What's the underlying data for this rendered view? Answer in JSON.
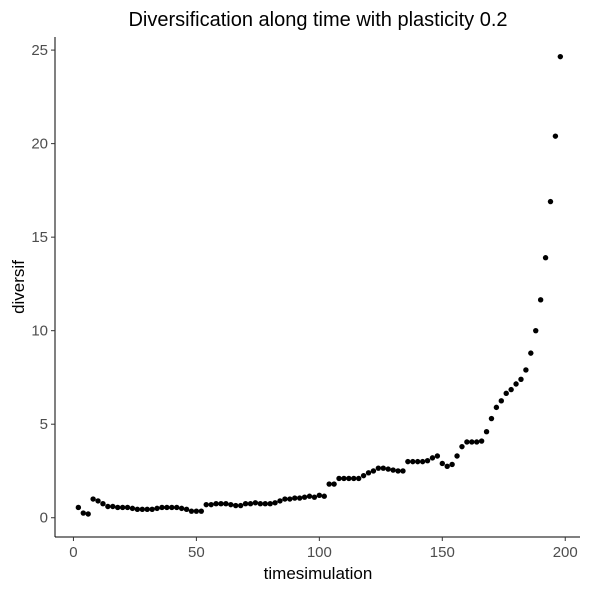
{
  "chart_data": {
    "type": "scatter",
    "title": "Diversification along time with plasticity 0.2",
    "xlabel": "timesimulation",
    "ylabel": "diversif",
    "xlim": [
      -7.5,
      206
    ],
    "ylim": [
      -1.03,
      25.7
    ],
    "xticks": [
      0,
      50,
      100,
      150,
      200
    ],
    "yticks": [
      0,
      5,
      10,
      15,
      20,
      25
    ],
    "xtick_labels": [
      "0",
      "50",
      "100",
      "150",
      "200"
    ],
    "ytick_labels": [
      "0",
      "5",
      "10",
      "15",
      "20",
      "25"
    ],
    "grid": false,
    "point_color": "#000000",
    "x": [
      2,
      4,
      6,
      8,
      10,
      12,
      14,
      16,
      18,
      20,
      22,
      24,
      26,
      28,
      30,
      32,
      34,
      36,
      38,
      40,
      42,
      44,
      46,
      48,
      50,
      52,
      54,
      56,
      58,
      60,
      62,
      64,
      66,
      68,
      70,
      72,
      74,
      76,
      78,
      80,
      82,
      84,
      86,
      88,
      90,
      92,
      94,
      96,
      98,
      100,
      102,
      104,
      106,
      108,
      110,
      112,
      114,
      116,
      118,
      120,
      122,
      124,
      126,
      128,
      130,
      132,
      134,
      136,
      138,
      140,
      142,
      144,
      146,
      148,
      150,
      152,
      154,
      156,
      158,
      160,
      162,
      164,
      166,
      168,
      170,
      172,
      174,
      176,
      178,
      180,
      182,
      184,
      186,
      188,
      190,
      192,
      194,
      196,
      198
    ],
    "y": [
      0.55,
      0.25,
      0.2,
      1.0,
      0.9,
      0.75,
      0.6,
      0.6,
      0.55,
      0.55,
      0.55,
      0.5,
      0.45,
      0.45,
      0.45,
      0.45,
      0.5,
      0.55,
      0.55,
      0.55,
      0.55,
      0.5,
      0.45,
      0.35,
      0.35,
      0.35,
      0.7,
      0.7,
      0.75,
      0.75,
      0.75,
      0.7,
      0.65,
      0.65,
      0.75,
      0.75,
      0.8,
      0.75,
      0.75,
      0.75,
      0.8,
      0.9,
      1.0,
      1.0,
      1.05,
      1.05,
      1.1,
      1.15,
      1.1,
      1.2,
      1.15,
      1.8,
      1.8,
      2.1,
      2.1,
      2.1,
      2.1,
      2.1,
      2.25,
      2.4,
      2.5,
      2.65,
      2.65,
      2.6,
      2.55,
      2.5,
      2.5,
      3.0,
      3.0,
      3.0,
      3.0,
      3.05,
      3.2,
      3.3,
      2.9,
      2.75,
      2.85,
      3.3,
      3.8,
      4.05,
      4.05,
      4.05,
      4.1,
      4.6,
      5.3,
      5.9,
      6.25,
      6.65,
      6.85,
      7.15,
      7.4,
      7.9,
      8.8,
      10.0,
      11.65,
      13.9,
      16.9,
      20.4,
      24.65
    ]
  }
}
